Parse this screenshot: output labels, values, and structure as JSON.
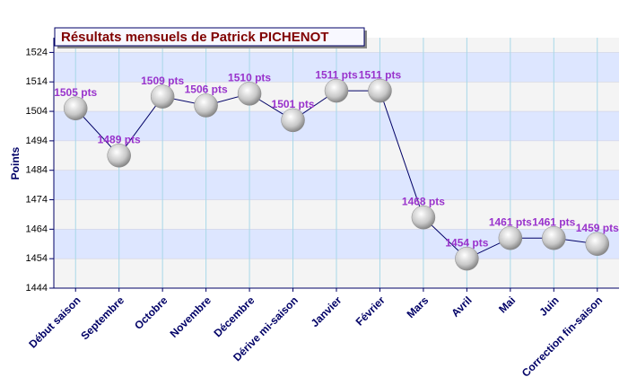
{
  "chart_data": {
    "type": "line",
    "title": "Résultats mensuels de Patrick PICHENOT",
    "y_label": "Points",
    "categories": [
      "Début saison",
      "Septembre",
      "Octobre",
      "Novembre",
      "Décembre",
      "Dérive mi-saison",
      "Janvier",
      "Février",
      "Mars",
      "Avril",
      "Mai",
      "Juin",
      "Correction fin-saison"
    ],
    "values": [
      1505,
      1489,
      1509,
      1506,
      1510,
      1501,
      1511,
      1511,
      1468,
      1454,
      1461,
      1461,
      1459
    ],
    "value_labels": [
      "1505 pts",
      "1489 pts",
      "1509 pts",
      "1506 pts",
      "1510 pts",
      "1501 pts",
      "1511 pts",
      "1511 pts",
      "1468 pts",
      "1454 pts",
      "1461 pts",
      "1461 pts",
      "1459 pts"
    ],
    "color": "#000066",
    "label_color": "#9933cc",
    "ylim": [
      1444,
      1529
    ],
    "yticks": [
      1444,
      1454,
      1464,
      1474,
      1484,
      1494,
      1504,
      1514,
      1524
    ],
    "grid": true
  }
}
